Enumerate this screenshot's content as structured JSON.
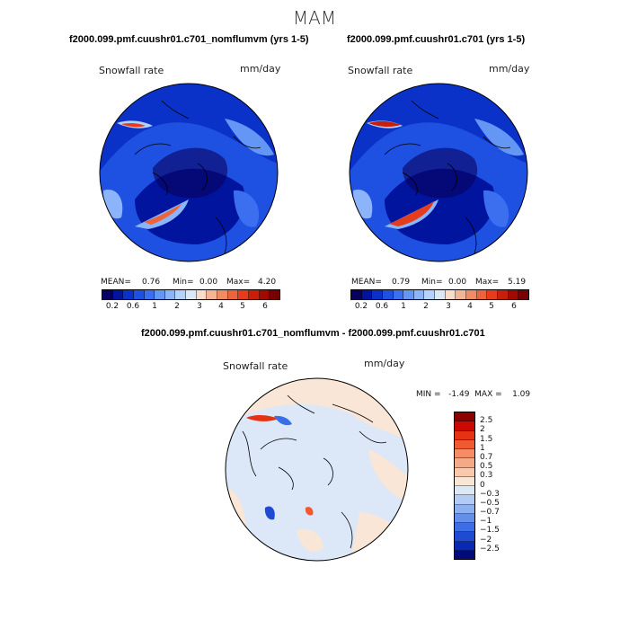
{
  "season": "MAM",
  "panel1": {
    "title": "f2000.099.pmf.cuushr01.c701_nomflumvm (yrs 1-5)",
    "variable": "Snowfall rate",
    "units": "mm/day",
    "stats": {
      "mean_label": "MEAN=",
      "mean": "0.76",
      "min_label": "Min=",
      "min": "0.00",
      "max_label": "Max=",
      "max": "4.20"
    }
  },
  "panel2": {
    "title": "f2000.099.pmf.cuushr01.c701 (yrs 1-5)",
    "variable": "Snowfall rate",
    "units": "mm/day",
    "stats": {
      "mean_label": "MEAN=",
      "mean": "0.79",
      "min_label": "Min=",
      "min": "0.00",
      "max_label": "Max=",
      "max": "5.19"
    }
  },
  "diff": {
    "title": "f2000.099.pmf.cuushr01.c701_nomflumvm - f2000.099.pmf.cuushr01.c701",
    "variable": "Snowfall rate",
    "units": "mm/day",
    "minmax": "MIN =   -1.49  MAX =    1.09"
  },
  "abs_colorbar": {
    "tick_labels": [
      "0.2",
      "0.6",
      "1",
      "2",
      "3",
      "4",
      "5",
      "6"
    ],
    "colors": [
      "#08005e",
      "#00149e",
      "#0a32c8",
      "#1e50e1",
      "#3c6ef0",
      "#6496f5",
      "#8cb4fa",
      "#b4d2fa",
      "#dce8f5",
      "#fadcc8",
      "#f5b496",
      "#f08c64",
      "#eb643c",
      "#e63c1e",
      "#c81e0a",
      "#a00a00",
      "#780000"
    ]
  },
  "diff_colorbar": {
    "labels": [
      "2.5",
      "2",
      "1.5",
      "1",
      "0.7",
      "0.5",
      "0.3",
      "0",
      "−0.3",
      "−0.5",
      "−0.7",
      "−1",
      "−1.5",
      "−2",
      "−2.5"
    ],
    "colors": [
      "#8c0000",
      "#c80a00",
      "#e63214",
      "#f05a32",
      "#f58c64",
      "#f5aa87",
      "#fac8aa",
      "#fae6d7",
      "#dce8f8",
      "#b4ccf5",
      "#8cb0f0",
      "#6490eb",
      "#3c6ee6",
      "#1e4bd2",
      "#0a28b4",
      "#000a78"
    ]
  }
}
